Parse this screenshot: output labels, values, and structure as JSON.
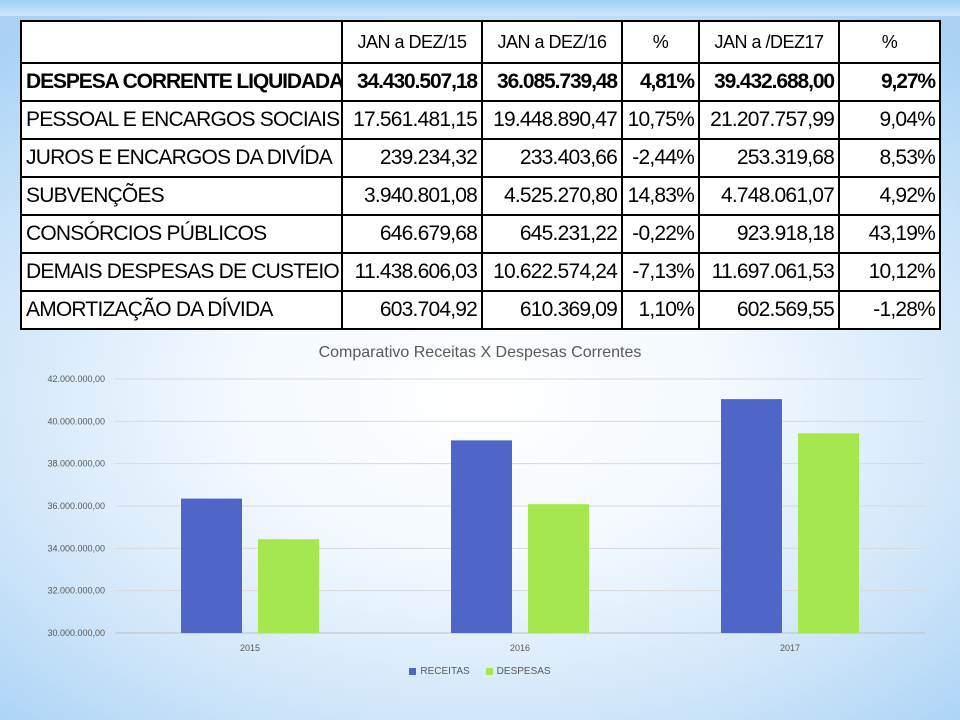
{
  "table": {
    "headers": [
      "",
      "JAN a DEZ/15",
      "JAN a DEZ/16",
      "%",
      "JAN a /DEZ17",
      "%"
    ],
    "rows": [
      [
        "DESPESA CORRENTE LIQUIDADA",
        "34.430.507,18",
        "36.085.739,48",
        "4,81%",
        "39.432.688,00",
        "9,27%"
      ],
      [
        "PESSOAL E ENCARGOS SOCIAIS",
        "17.561.481,15",
        "19.448.890,47",
        "10,75%",
        "21.207.757,99",
        "9,04%"
      ],
      [
        "JUROS E ENCARGOS DA DIVÍDA",
        "239.234,32",
        "233.403,66",
        "-2,44%",
        "253.319,68",
        "8,53%"
      ],
      [
        "SUBVENÇÕES",
        "3.940.801,08",
        "4.525.270,80",
        "14,83%",
        "4.748.061,07",
        "4,92%"
      ],
      [
        "CONSÓRCIOS PÚBLICOS",
        "646.679,68",
        "645.231,22",
        "-0,22%",
        "923.918,18",
        "43,19%"
      ],
      [
        "DEMAIS DESPESAS DE CUSTEIO",
        "11.438.606,03",
        "10.622.574,24",
        "-7,13%",
        "11.697.061,53",
        "10,12%"
      ],
      [
        "AMORTIZAÇÃO DA DÍVIDA",
        "603.704,92",
        "610.369,09",
        "1,10%",
        "602.569,55",
        "-1,28%"
      ]
    ]
  },
  "chart_data": {
    "type": "bar",
    "title": "Comparativo Receitas X Despesas Correntes",
    "categories": [
      "2015",
      "2016",
      "2017"
    ],
    "series": [
      {
        "name": "RECEITAS",
        "color": "#4F66C8",
        "values": [
          36350000,
          39100000,
          41050000
        ]
      },
      {
        "name": "DESPESAS",
        "color": "#A6E64E",
        "values": [
          34430507.18,
          36085739.48,
          39432688.0
        ]
      }
    ],
    "ylim": [
      30000000,
      42000000
    ],
    "yticks": [
      30000000,
      32000000,
      34000000,
      36000000,
      38000000,
      40000000,
      42000000
    ],
    "ytick_labels": [
      "30.000.000,00",
      "32.000.000,00",
      "34.000.000,00",
      "36.000.000,00",
      "38.000.000,00",
      "40.000.000,00",
      "42.000.000,00"
    ],
    "grid": true,
    "legend_position": "bottom"
  }
}
